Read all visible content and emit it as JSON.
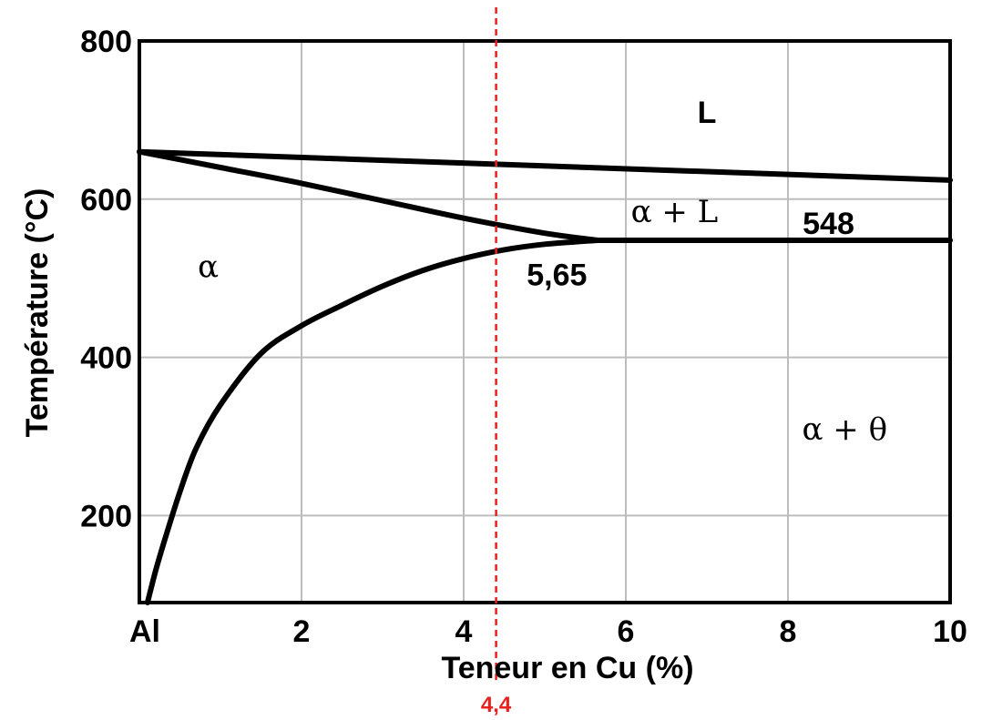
{
  "chart_data": {
    "type": "line",
    "title": "",
    "xlabel": "Teneur en Cu (%)",
    "ylabel": "Température (°C)",
    "xlim": [
      0,
      10
    ],
    "ylim": [
      90,
      800
    ],
    "x_ticks": [
      {
        "value": 0,
        "label": "Al"
      },
      {
        "value": 2,
        "label": "2"
      },
      {
        "value": 4,
        "label": "4"
      },
      {
        "value": 6,
        "label": "6"
      },
      {
        "value": 8,
        "label": "8"
      },
      {
        "value": 10,
        "label": "10"
      }
    ],
    "y_ticks": [
      {
        "value": 200,
        "label": "200"
      },
      {
        "value": 400,
        "label": "400"
      },
      {
        "value": 600,
        "label": "600"
      },
      {
        "value": 800,
        "label": "800"
      }
    ],
    "grid": true,
    "series": [
      {
        "id": "liquidus-long",
        "points": [
          [
            0,
            660
          ],
          [
            10,
            624
          ]
        ]
      },
      {
        "id": "liquidus-to-eutectic",
        "points": [
          [
            0,
            660
          ],
          [
            1,
            640
          ],
          [
            2,
            620
          ],
          [
            3,
            598
          ],
          [
            4,
            576
          ],
          [
            5,
            557
          ],
          [
            5.65,
            548
          ]
        ]
      },
      {
        "id": "solvus",
        "points": [
          [
            0.1,
            90
          ],
          [
            0.2,
            130
          ],
          [
            0.3,
            165
          ],
          [
            0.5,
            230
          ],
          [
            0.7,
            285
          ],
          [
            1.0,
            340
          ],
          [
            1.5,
            405
          ],
          [
            2.0,
            440
          ],
          [
            2.5,
            466
          ],
          [
            3.0,
            490
          ],
          [
            3.5,
            510
          ],
          [
            4.0,
            525
          ],
          [
            4.5,
            536
          ],
          [
            5.0,
            543
          ],
          [
            5.65,
            548
          ]
        ]
      },
      {
        "id": "eutectic-isotherm",
        "points": [
          [
            5.65,
            548
          ],
          [
            10,
            548
          ]
        ]
      }
    ],
    "reference_line": {
      "x": 4.4,
      "label": "4,4",
      "color": "#e8201e",
      "style": "dashed"
    },
    "annotations": [
      {
        "text": "L",
        "x": 7.0,
        "y": 710,
        "font": "sans"
      },
      {
        "text": "α + L",
        "x": 6.6,
        "y": 585,
        "font": "serif"
      },
      {
        "text": "548",
        "x": 8.5,
        "y": 570,
        "font": "sans"
      },
      {
        "text": "α",
        "x": 0.85,
        "y": 515,
        "font": "serif"
      },
      {
        "text": "5,65",
        "x": 5.15,
        "y": 505,
        "font": "sans"
      },
      {
        "text": "α + θ",
        "x": 8.7,
        "y": 310,
        "font": "serif"
      }
    ]
  }
}
